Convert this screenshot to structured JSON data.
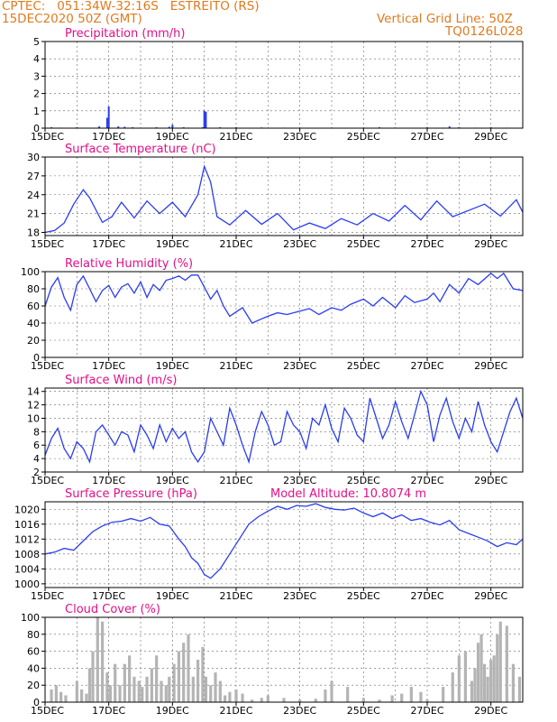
{
  "header": {
    "line1": "CPTEC:   051:34W-32:16S   ESTREITO (RS)",
    "line2": "15DEC2020 50Z (GMT)",
    "grid_note": "Vertical Grid Line: 50Z",
    "model_id": "TQ0126L028"
  },
  "colors": {
    "header": "#e07a1e",
    "panel_title": "#e0108a",
    "series_line": "#2a3cf0",
    "cloud_fill": "#b4b4b4",
    "grid": "#000000"
  },
  "date_labels": [
    "15DEC",
    "17DEC",
    "19DEC",
    "21DEC",
    "23DEC",
    "25DEC",
    "27DEC",
    "29DEC"
  ],
  "chart_data": [
    {
      "type": "bar",
      "title": "Precipitation (mm/h)",
      "ylim": [
        0,
        5
      ],
      "yticks": [
        0,
        1,
        2,
        3,
        4,
        5
      ],
      "x_unit": "days since 15DEC",
      "x": [
        0.2,
        0.5,
        1.0,
        1.7,
        1.95,
        2.0,
        2.3,
        2.5,
        2.75,
        3.5,
        3.9,
        4.0,
        4.35,
        4.5,
        4.95,
        5.0,
        5.05,
        5.5,
        6.0,
        6.8,
        7.5,
        8.0,
        8.5,
        9.0,
        9.5,
        10.0,
        10.5,
        11.0,
        11.5,
        12.0,
        12.5,
        12.7,
        13.0,
        13.5,
        14.0,
        14.5
      ],
      "values": [
        0.05,
        0.03,
        0.05,
        0.1,
        0.6,
        1.25,
        0.1,
        0.08,
        0.05,
        0.05,
        0.08,
        0.2,
        0.05,
        0.03,
        0.05,
        1.0,
        0.95,
        0.05,
        0.05,
        0.04,
        0.03,
        0.03,
        0.02,
        0.03,
        0.02,
        0.03,
        0.05,
        0.03,
        0.02,
        0.05,
        0.03,
        0.1,
        0.05,
        0.03,
        0.05,
        0.03
      ]
    },
    {
      "type": "line",
      "title": "Surface Temperature (nC)",
      "ylim": [
        17.5,
        30
      ],
      "yticks": [
        18,
        21,
        24,
        27,
        30
      ],
      "x": [
        0,
        0.3,
        0.6,
        0.9,
        1.2,
        1.4,
        1.8,
        2.1,
        2.4,
        2.8,
        3.2,
        3.6,
        4.0,
        4.4,
        4.8,
        5.0,
        5.2,
        5.4,
        5.8,
        6.3,
        6.8,
        7.3,
        7.8,
        8.3,
        8.8,
        9.3,
        9.8,
        10.3,
        10.8,
        11.3,
        11.8,
        12.3,
        12.8,
        13.3,
        13.8,
        14.3,
        14.8,
        15.0
      ],
      "values": [
        18.0,
        18.3,
        19.5,
        22.5,
        24.8,
        23.5,
        19.6,
        20.5,
        22.8,
        20.3,
        23.0,
        21.0,
        22.8,
        20.5,
        24.0,
        28.5,
        26.0,
        20.5,
        19.2,
        21.5,
        19.3,
        21.0,
        18.4,
        19.5,
        18.6,
        20.2,
        19.2,
        21.0,
        19.8,
        22.3,
        20.0,
        23.0,
        20.5,
        21.5,
        22.5,
        20.6,
        23.2,
        21.2
      ]
    },
    {
      "type": "line",
      "title": "Relative Humidity (%)",
      "ylim": [
        0,
        100
      ],
      "yticks": [
        0,
        20,
        40,
        60,
        80,
        100
      ],
      "x": [
        0,
        0.2,
        0.4,
        0.6,
        0.8,
        1.0,
        1.2,
        1.4,
        1.6,
        1.8,
        2.0,
        2.2,
        2.4,
        2.6,
        2.8,
        3.0,
        3.2,
        3.4,
        3.6,
        3.8,
        4.0,
        4.2,
        4.4,
        4.6,
        4.8,
        5.0,
        5.2,
        5.4,
        5.6,
        5.8,
        6.0,
        6.2,
        6.5,
        6.8,
        7.0,
        7.3,
        7.6,
        8.0,
        8.3,
        8.6,
        9.0,
        9.3,
        9.6,
        10.0,
        10.3,
        10.6,
        11.0,
        11.3,
        11.6,
        12.0,
        12.2,
        12.4,
        12.7,
        13.0,
        13.3,
        13.6,
        14.0,
        14.2,
        14.4,
        14.7,
        15.0
      ],
      "values": [
        60,
        82,
        93,
        70,
        55,
        85,
        95,
        80,
        65,
        78,
        84,
        70,
        82,
        86,
        75,
        88,
        70,
        85,
        78,
        90,
        92,
        95,
        90,
        96,
        96,
        82,
        68,
        78,
        60,
        48,
        53,
        58,
        40,
        45,
        48,
        52,
        50,
        54,
        57,
        50,
        58,
        55,
        62,
        68,
        60,
        70,
        58,
        72,
        64,
        68,
        75,
        65,
        85,
        75,
        92,
        85,
        98,
        92,
        98,
        80,
        78
      ]
    },
    {
      "type": "line",
      "title": "Surface Wind (m/s)",
      "ylim": [
        2,
        14.5
      ],
      "yticks": [
        2,
        4,
        6,
        8,
        10,
        12,
        14
      ],
      "x": [
        0,
        0.2,
        0.4,
        0.6,
        0.8,
        1.0,
        1.2,
        1.4,
        1.6,
        1.8,
        2.0,
        2.2,
        2.4,
        2.6,
        2.8,
        3.0,
        3.2,
        3.4,
        3.6,
        3.8,
        4.0,
        4.2,
        4.4,
        4.6,
        4.8,
        5.0,
        5.2,
        5.4,
        5.6,
        5.8,
        6.0,
        6.2,
        6.4,
        6.6,
        6.8,
        7.0,
        7.2,
        7.4,
        7.6,
        7.8,
        8.0,
        8.2,
        8.4,
        8.6,
        8.8,
        9.0,
        9.2,
        9.4,
        9.6,
        9.8,
        10.0,
        10.2,
        10.4,
        10.6,
        10.8,
        11.0,
        11.2,
        11.4,
        11.6,
        11.8,
        12.0,
        12.2,
        12.4,
        12.6,
        12.8,
        13.0,
        13.2,
        13.4,
        13.6,
        13.8,
        14.0,
        14.2,
        14.4,
        14.6,
        14.8,
        15.0
      ],
      "values": [
        4.5,
        7.0,
        8.5,
        5.5,
        4.0,
        6.5,
        5.5,
        3.5,
        8.0,
        9.0,
        7.5,
        6.0,
        8.0,
        7.5,
        5.0,
        9.0,
        7.5,
        5.5,
        9.0,
        6.5,
        8.5,
        7.0,
        8.0,
        5.0,
        3.5,
        5.0,
        10.0,
        8.0,
        6.0,
        11.5,
        9.0,
        6.0,
        3.5,
        8.0,
        11.0,
        9.0,
        6.0,
        6.5,
        11.0,
        9.0,
        8.0,
        5.5,
        10.0,
        9.0,
        12.0,
        8.5,
        6.5,
        11.5,
        10.0,
        7.5,
        6.5,
        13.0,
        10.0,
        7.0,
        9.0,
        12.5,
        9.5,
        7.0,
        10.5,
        14.0,
        12.0,
        6.5,
        10.5,
        13.0,
        9.5,
        7.0,
        10.0,
        8.0,
        12.5,
        9.0,
        6.5,
        5.0,
        8.0,
        11.0,
        13.0,
        10.0
      ]
    },
    {
      "type": "line",
      "title": "Surface Pressure (hPa)",
      "annotation": "Model Altitude: 10.8074 m",
      "ylim": [
        999,
        1022
      ],
      "yticks": [
        1000,
        1004,
        1008,
        1012,
        1016,
        1020
      ],
      "x": [
        0,
        0.3,
        0.6,
        0.9,
        1.2,
        1.5,
        1.8,
        2.1,
        2.4,
        2.7,
        3.0,
        3.3,
        3.6,
        3.9,
        4.2,
        4.4,
        4.6,
        4.8,
        5.0,
        5.2,
        5.5,
        5.8,
        6.1,
        6.4,
        6.7,
        7.0,
        7.3,
        7.6,
        7.9,
        8.2,
        8.5,
        8.8,
        9.1,
        9.4,
        9.7,
        10.0,
        10.3,
        10.6,
        10.9,
        11.2,
        11.5,
        11.8,
        12.1,
        12.4,
        12.7,
        13.0,
        13.3,
        13.6,
        13.9,
        14.2,
        14.5,
        14.8,
        15.0
      ],
      "values": [
        1008,
        1008.5,
        1009.5,
        1009,
        1011.5,
        1014,
        1015.5,
        1016.5,
        1016.8,
        1017.5,
        1016.8,
        1017.8,
        1016,
        1015.5,
        1012,
        1010,
        1007,
        1005.5,
        1002.5,
        1001.5,
        1004,
        1008,
        1012,
        1016,
        1018,
        1019.5,
        1020.8,
        1020,
        1021,
        1020.8,
        1021.5,
        1020.5,
        1020,
        1019.8,
        1020.3,
        1019,
        1018,
        1019,
        1017.5,
        1018.5,
        1017,
        1017.5,
        1016.5,
        1015.8,
        1017,
        1014.5,
        1013.5,
        1012.5,
        1011.5,
        1010,
        1011,
        1010.5,
        1012
      ]
    },
    {
      "type": "bar",
      "title": "Cloud Cover (%)",
      "ylim": [
        0,
        100
      ],
      "yticks": [
        0,
        20,
        40,
        60,
        80,
        100
      ],
      "x": [
        0.2,
        0.35,
        0.5,
        0.65,
        1.0,
        1.15,
        1.3,
        1.4,
        1.5,
        1.65,
        1.8,
        1.95,
        2.0,
        2.05,
        2.2,
        2.35,
        2.5,
        2.65,
        2.8,
        2.95,
        3.05,
        3.2,
        3.35,
        3.5,
        3.65,
        3.8,
        3.9,
        4.05,
        4.2,
        4.35,
        4.5,
        4.65,
        4.8,
        4.95,
        5.05,
        5.2,
        5.35,
        5.5,
        5.65,
        5.8,
        6.0,
        6.2,
        6.5,
        6.8,
        7.0,
        7.5,
        8.0,
        8.5,
        8.8,
        9.0,
        9.5,
        10.0,
        10.5,
        10.9,
        11.2,
        11.5,
        11.8,
        12.0,
        12.5,
        12.8,
        13.0,
        13.2,
        13.4,
        13.5,
        13.6,
        13.7,
        13.8,
        13.9,
        14.0,
        14.1,
        14.2,
        14.3,
        14.5,
        14.7,
        14.9
      ],
      "values": [
        15,
        20,
        12,
        8,
        25,
        15,
        10,
        40,
        60,
        100,
        95,
        35,
        10,
        20,
        45,
        20,
        45,
        55,
        30,
        25,
        18,
        30,
        40,
        55,
        25,
        20,
        30,
        45,
        60,
        70,
        80,
        30,
        50,
        65,
        30,
        20,
        35,
        25,
        8,
        12,
        15,
        10,
        3,
        5,
        8,
        5,
        3,
        4,
        15,
        25,
        18,
        5,
        3,
        8,
        10,
        18,
        12,
        3,
        18,
        35,
        55,
        60,
        25,
        40,
        70,
        80,
        45,
        30,
        50,
        55,
        80,
        95,
        90,
        45,
        30
      ]
    }
  ]
}
